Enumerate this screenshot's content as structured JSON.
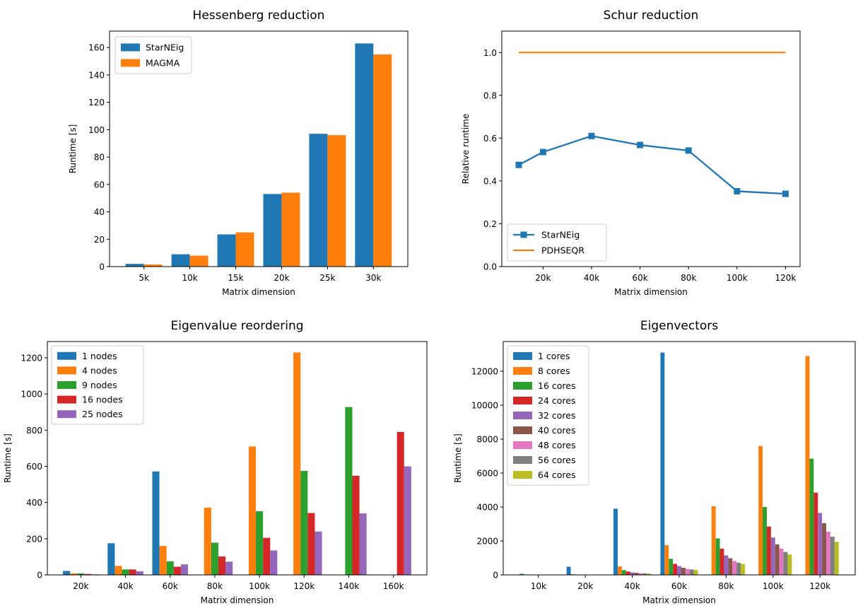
{
  "chart_data": [
    {
      "type": "bar",
      "title": "Hessenberg reduction",
      "xlabel": "Matrix dimension",
      "ylabel": "Runtime [s]",
      "categories": [
        "5k",
        "10k",
        "15k",
        "20k",
        "25k",
        "30k"
      ],
      "ylim": [
        0,
        172
      ],
      "yticks": [
        0,
        20,
        40,
        60,
        80,
        100,
        120,
        140,
        160
      ],
      "grid": false,
      "legend_position": "top-left",
      "series": [
        {
          "name": "StarNEig",
          "color": "#1f77b4",
          "values": [
            2,
            9,
            23.5,
            53,
            97,
            163
          ]
        },
        {
          "name": "MAGMA",
          "color": "#ff7f0e",
          "values": [
            1.5,
            8,
            25,
            54,
            96,
            155
          ]
        }
      ]
    },
    {
      "type": "line",
      "title": "Schur reduction",
      "xlabel": "Matrix dimension",
      "ylabel": "Relative runtime",
      "xticks": [
        20000,
        40000,
        60000,
        80000,
        100000,
        120000
      ],
      "xticklabels": [
        "20k",
        "40k",
        "60k",
        "80k",
        "100k",
        "120k"
      ],
      "xlim": [
        3000,
        126000
      ],
      "ylim": [
        0,
        1.1
      ],
      "yticks": [
        0.0,
        0.2,
        0.4,
        0.6,
        0.8,
        1.0
      ],
      "yticklabels": [
        "0.0",
        "0.2",
        "0.4",
        "0.6",
        "0.8",
        "1.0"
      ],
      "grid": false,
      "legend_position": "bottom-left",
      "series": [
        {
          "name": "StarNEig",
          "color": "#1f77b4",
          "marker": "square",
          "x": [
            10000,
            20000,
            40000,
            60000,
            80000,
            100000,
            120000
          ],
          "y": [
            0.475,
            0.535,
            0.61,
            0.568,
            0.542,
            0.352,
            0.34
          ]
        },
        {
          "name": "PDHSEQR",
          "color": "#ff7f0e",
          "marker": "none",
          "x": [
            10000,
            120000
          ],
          "y": [
            1.0,
            1.0
          ]
        }
      ]
    },
    {
      "type": "bar",
      "title": "Eigenvalue reordering",
      "xlabel": "Matrix dimension",
      "ylabel": "Runtime [s]",
      "categories": [
        "20k",
        "40k",
        "60k",
        "80k",
        "100k",
        "120k",
        "140k",
        "160k"
      ],
      "ylim": [
        0,
        1290
      ],
      "yticks": [
        0,
        200,
        400,
        600,
        800,
        1000,
        1200
      ],
      "grid": false,
      "legend_position": "top-left",
      "series": [
        {
          "name": "1 nodes",
          "color": "#1f77b4",
          "values": [
            22,
            175,
            572,
            null,
            null,
            null,
            null,
            null
          ]
        },
        {
          "name": "4 nodes",
          "color": "#ff7f0e",
          "values": [
            8,
            50,
            160,
            372,
            710,
            1230,
            null,
            null
          ]
        },
        {
          "name": "9 nodes",
          "color": "#2ca02c",
          "values": [
            8,
            30,
            75,
            178,
            352,
            575,
            928,
            null
          ]
        },
        {
          "name": "16 nodes",
          "color": "#d62728",
          "values": [
            5,
            30,
            45,
            102,
            205,
            342,
            548,
            790
          ]
        },
        {
          "name": "25 nodes",
          "color": "#9467bd",
          "values": [
            3,
            20,
            58,
            73,
            135,
            240,
            340,
            600
          ]
        }
      ]
    },
    {
      "type": "bar",
      "title": "Eigenvectors",
      "xlabel": "Matrix dimension",
      "ylabel": "Runtime [s]",
      "categories": [
        "10k",
        "20k",
        "40k",
        "60k",
        "80k",
        "100k",
        "120k"
      ],
      "ylim": [
        0,
        13750
      ],
      "yticks": [
        0,
        2000,
        4000,
        6000,
        8000,
        10000,
        12000
      ],
      "grid": false,
      "legend_position": "top-left",
      "series": [
        {
          "name": "1 cores",
          "color": "#1f77b4",
          "values": [
            60,
            480,
            3900,
            13100,
            null,
            null,
            null
          ]
        },
        {
          "name": "8 cores",
          "color": "#ff7f0e",
          "values": [
            20,
            40,
            500,
            1750,
            4050,
            7600,
            12900
          ]
        },
        {
          "name": "16 cores",
          "color": "#2ca02c",
          "values": [
            15,
            25,
            280,
            950,
            2150,
            4000,
            6850
          ]
        },
        {
          "name": "24 cores",
          "color": "#d62728",
          "values": [
            12,
            20,
            200,
            650,
            1550,
            2850,
            4850
          ]
        },
        {
          "name": "32 cores",
          "color": "#9467bd",
          "values": [
            10,
            15,
            150,
            520,
            1150,
            2200,
            3650
          ]
        },
        {
          "name": "40 cores",
          "color": "#8c564b",
          "values": [
            10,
            15,
            120,
            420,
            980,
            1800,
            3050
          ]
        },
        {
          "name": "48 cores",
          "color": "#e377c2",
          "values": [
            8,
            12,
            100,
            350,
            820,
            1550,
            2550
          ]
        },
        {
          "name": "56 cores",
          "color": "#7f7f7f",
          "values": [
            8,
            12,
            90,
            320,
            720,
            1350,
            2250
          ]
        },
        {
          "name": "64 cores",
          "color": "#bcbd22",
          "values": [
            6,
            10,
            80,
            290,
            640,
            1200,
            1950
          ]
        }
      ]
    }
  ]
}
